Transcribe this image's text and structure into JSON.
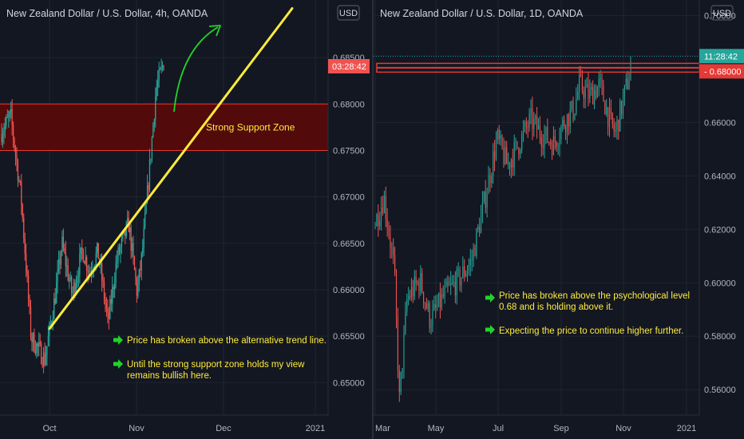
{
  "colors": {
    "background": "#131722",
    "grid": "#1f2430",
    "up": "#26a69a",
    "down": "#ef5350",
    "axis_text": "#b2b5be",
    "title_text": "#d1d4dc",
    "zone_fill": "#5b0909",
    "zone_line": "#e53935",
    "trendline": "#ffeb3b",
    "annotation_text": "#ffeb3b",
    "arrow": "#22d32a",
    "right_price_tag": "#26a69a"
  },
  "chart_data": [
    {
      "type": "candlestick",
      "title": "New Zealand Dollar / U.S. Dollar, 4h, OANDA",
      "currency_badge": "USD",
      "y_ticks": [
        "0.68500",
        "0.68000",
        "0.67500",
        "0.67000",
        "0.66500",
        "0.66000",
        "0.65500",
        "0.65000"
      ],
      "ylim": [
        0.6465,
        0.6912
      ],
      "x_ticks": [
        "Oct",
        "Nov",
        "Dec",
        "2021"
      ],
      "price_tag": "03:28:42",
      "support_zone": {
        "label": "Strong Support Zone",
        "low": 0.675,
        "high": 0.68
      },
      "trend_line": {
        "from": [
          "Sep 28",
          0.6558
        ],
        "to": [
          "Dec 18",
          0.6903
        ]
      },
      "annotations": [
        "Price has broken above the alternative trend line.",
        "Until the strong support zone holds my view remains bullish here."
      ],
      "path_waypoints": [
        [
          0,
          0.6768
        ],
        [
          0.06,
          0.6787
        ],
        [
          0.12,
          0.6702
        ],
        [
          0.18,
          0.6548
        ],
        [
          0.26,
          0.6525
        ],
        [
          0.32,
          0.6593
        ],
        [
          0.36,
          0.665
        ],
        [
          0.42,
          0.6594
        ],
        [
          0.48,
          0.6643
        ],
        [
          0.52,
          0.662
        ],
        [
          0.57,
          0.6641
        ],
        [
          0.63,
          0.6564
        ],
        [
          0.68,
          0.6632
        ],
        [
          0.75,
          0.6671
        ],
        [
          0.8,
          0.6596
        ],
        [
          0.83,
          0.664
        ],
        [
          0.87,
          0.6725
        ],
        [
          0.91,
          0.6815
        ],
        [
          0.955,
          0.6845
        ]
      ]
    },
    {
      "type": "candlestick",
      "title": "New Zealand Dollar / U.S. Dollar, 1D, OANDA",
      "currency_badge": "USD",
      "y_ticks": [
        "0.70000",
        "0.68000",
        "0.66000",
        "0.64000",
        "0.62000",
        "0.60000",
        "0.58000",
        "0.56000"
      ],
      "ylim": [
        0.5505,
        0.7058
      ],
      "x_ticks": [
        "Mar",
        "May",
        "Jul",
        "Sep",
        "Nov",
        "2021"
      ],
      "price_tag": "11:28:42",
      "level_tag": "0.68000",
      "level": 0.68,
      "annotations": [
        "Price has broken above the psychological level 0.68 and is holding above it.",
        "Expecting the price to continue higher further."
      ],
      "path_waypoints": [
        [
          0,
          0.621
        ],
        [
          0.04,
          0.632
        ],
        [
          0.08,
          0.605
        ],
        [
          0.1,
          0.556
        ],
        [
          0.13,
          0.594
        ],
        [
          0.18,
          0.601
        ],
        [
          0.22,
          0.586
        ],
        [
          0.28,
          0.596
        ],
        [
          0.33,
          0.601
        ],
        [
          0.38,
          0.608
        ],
        [
          0.43,
          0.63
        ],
        [
          0.48,
          0.654
        ],
        [
          0.52,
          0.644
        ],
        [
          0.56,
          0.651
        ],
        [
          0.61,
          0.661
        ],
        [
          0.65,
          0.656
        ],
        [
          0.7,
          0.652
        ],
        [
          0.74,
          0.66
        ],
        [
          0.78,
          0.665
        ],
        [
          0.8,
          0.674
        ],
        [
          0.84,
          0.67
        ],
        [
          0.88,
          0.674
        ],
        [
          0.92,
          0.66
        ],
        [
          0.94,
          0.656
        ],
        [
          0.97,
          0.668
        ],
        [
          1.0,
          0.68
        ]
      ]
    }
  ]
}
